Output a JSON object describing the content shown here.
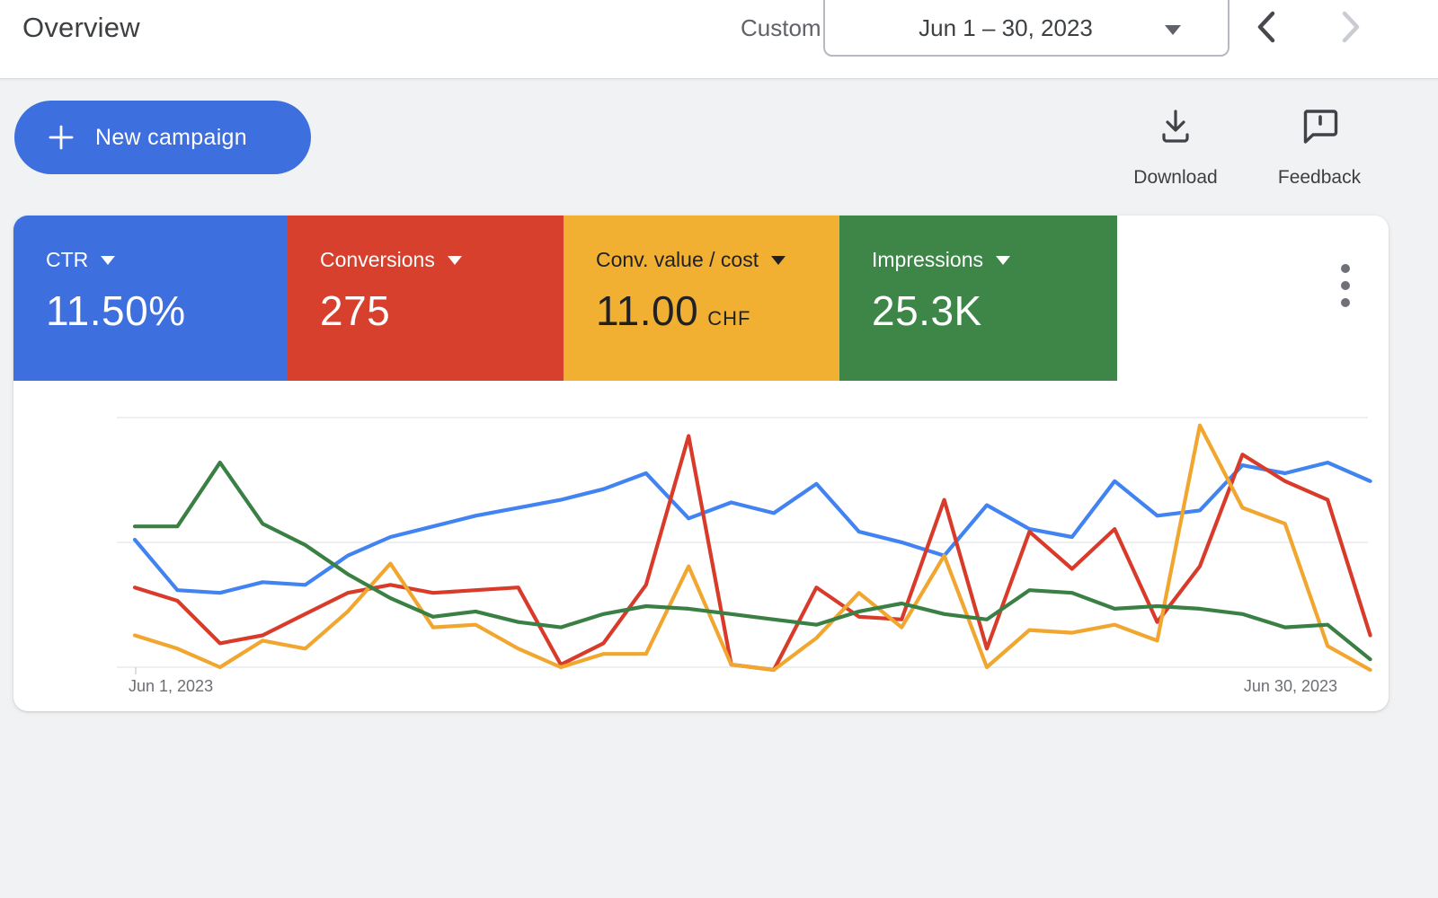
{
  "header": {
    "title": "Overview",
    "range_type_label": "Custom",
    "date_range": "Jun 1 – 30, 2023",
    "prev_enabled": true,
    "next_enabled": false
  },
  "actions": {
    "new_campaign": "New campaign",
    "download": "Download",
    "feedback": "Feedback"
  },
  "metric_cards": {
    "items": [
      {
        "label": "CTR",
        "value": "11.50%",
        "suffix": "",
        "bg": "#3e6fde",
        "fg": "#ffffff"
      },
      {
        "label": "Conversions",
        "value": "275",
        "suffix": "",
        "bg": "#d6402d",
        "fg": "#ffffff"
      },
      {
        "label": "Conv. value / cost",
        "value": "11.00",
        "suffix": "CHF",
        "bg": "#f2b032",
        "fg": "#202124"
      },
      {
        "label": "Impressions",
        "value": "25.3K",
        "suffix": "",
        "bg": "#3d8648",
        "fg": "#ffffff"
      }
    ]
  },
  "icons": {
    "new_campaign": "plus-icon",
    "download": "download-tray-icon",
    "feedback": "speech-bubble-exclamation-icon",
    "card_menu": "more-vertical-icon"
  },
  "colors": {
    "accent_blue": "#3e6fde",
    "red": "#d6402d",
    "yellow": "#f2b032",
    "green": "#3d8648",
    "gridline": "#e9eaed",
    "axis_text": "#6b6f75"
  },
  "chart_data": {
    "type": "line",
    "title": "",
    "x": {
      "days": 30,
      "start_label": "Jun 1, 2023",
      "end_label": "Jun 30, 2023"
    },
    "y": {
      "visible": false,
      "units": "relative 0-100 (no y-axis labels shown in chart)"
    },
    "grid": {
      "horizontal_lines": 3,
      "vertical_lines": 0
    },
    "legend_position": "none (series colors match metric cards above)",
    "series": [
      {
        "name": "CTR",
        "color": "#4183f0",
        "values": [
          49,
          30,
          29,
          33,
          32,
          43,
          50,
          54,
          58,
          61,
          64,
          68,
          74,
          57,
          63,
          59,
          70,
          52,
          48,
          43,
          62,
          53,
          50,
          71,
          58,
          60,
          77,
          74,
          78,
          71
        ]
      },
      {
        "name": "Conversions",
        "color": "#d93b2b",
        "values": [
          31,
          26,
          10,
          13,
          21,
          29,
          32,
          29,
          30,
          31,
          2,
          10,
          32,
          88,
          2,
          0,
          31,
          20,
          19,
          64,
          8,
          52,
          38,
          53,
          18,
          39,
          81,
          71,
          64,
          13
        ]
      },
      {
        "name": "Conv. value / cost",
        "color": "#f0a62f",
        "values": [
          13,
          8,
          1,
          11,
          8,
          22,
          40,
          16,
          17,
          8,
          1,
          6,
          6,
          39,
          2,
          0,
          12,
          29,
          16,
          43,
          1,
          15,
          14,
          17,
          11,
          92,
          61,
          55,
          9,
          0
        ]
      },
      {
        "name": "Impressions",
        "color": "#3a8044",
        "values": [
          54,
          54,
          78,
          55,
          47,
          36,
          27,
          20,
          22,
          18,
          16,
          21,
          24,
          23,
          21,
          19,
          17,
          22,
          25,
          21,
          19,
          30,
          29,
          23,
          24,
          23,
          21,
          16,
          17,
          4
        ]
      }
    ]
  }
}
